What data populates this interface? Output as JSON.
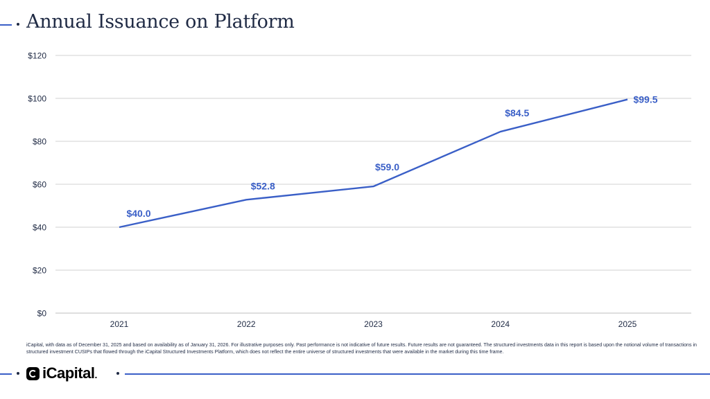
{
  "header": {
    "title": "Annual Issuance on Platform"
  },
  "chart_data": {
    "type": "line",
    "title": "Annual Issuance on Platform",
    "xlabel": "",
    "ylabel": "",
    "categories": [
      "2021",
      "2022",
      "2023",
      "2024",
      "2025"
    ],
    "series": [
      {
        "values": [
          40.0,
          52.8,
          59.0,
          84.5,
          99.5
        ]
      }
    ],
    "data_labels": [
      "$40.0",
      "$52.8",
      "$59.0",
      "$84.5",
      "$99.5"
    ],
    "ylim": [
      0,
      120
    ],
    "yticks": [
      0,
      20,
      40,
      60,
      80,
      100,
      120
    ],
    "ytick_labels": [
      "$0",
      "$20",
      "$40",
      "$60",
      "$80",
      "$100",
      "$120"
    ],
    "grid": true,
    "colors": {
      "line": "#3a5fc7",
      "label": "#3a5fc7",
      "grid": "#d0d0d0",
      "text": "#1f2a44"
    }
  },
  "footnote": "iCapital, with data as of December 31, 2025 and based on availability as of January 31, 2026. For illustrative purposes only. Past performance is not indicative of future results. Future results are not guaranteed. The structured investments data in this report is based upon the notional volume of transactions in structured investment CUSIPs that flowed through the iCapital Structured Investments Platform, which does not reflect the entire universe of structured investments that were available in the market during this time frame.",
  "footer": {
    "logo_text": "iCapital",
    "logo_suffix": "."
  }
}
